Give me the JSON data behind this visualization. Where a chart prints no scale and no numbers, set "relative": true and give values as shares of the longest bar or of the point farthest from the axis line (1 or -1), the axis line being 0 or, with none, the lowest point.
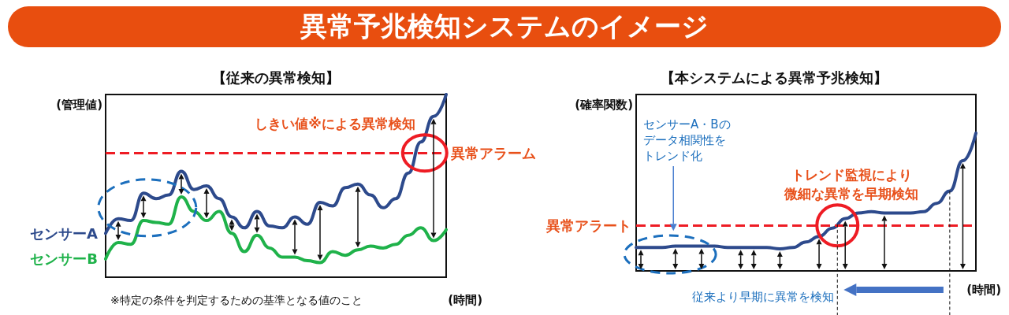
{
  "chart_data": [
    {
      "type": "line",
      "title": "異常予兆検知システムのイメージ",
      "subtitle": "【従来の異常検知】",
      "xlabel": "(時間)",
      "ylabel": "(管理値)",
      "relative": true,
      "categories": [
        null,
        null,
        null,
        null,
        null,
        null,
        null,
        null,
        null,
        null,
        null,
        null,
        null,
        null,
        null,
        null,
        null,
        null,
        null,
        null,
        null,
        null,
        null,
        null,
        null,
        null,
        null,
        null
      ],
      "series": [
        {
          "name": "センサーA",
          "color": "#2d4a8c",
          "values": [
            0.24,
            0.32,
            0.31,
            0.46,
            0.43,
            0.45,
            0.58,
            0.48,
            0.5,
            0.43,
            0.33,
            0.27,
            0.36,
            0.28,
            0.27,
            0.33,
            0.29,
            0.41,
            0.39,
            0.49,
            0.51,
            0.45,
            0.38,
            0.43,
            0.57,
            0.74,
            0.88,
            1
          ]
        },
        {
          "name": "センサーB",
          "color": "#1fb24a",
          "values": [
            0.1,
            0.19,
            0.18,
            0.31,
            0.3,
            0.29,
            0.44,
            0.36,
            0.31,
            0.36,
            0.24,
            0.14,
            0.23,
            0.16,
            0.11,
            0.11,
            0.09,
            0.08,
            0.14,
            0.12,
            0.15,
            0.17,
            0.16,
            0.18,
            0.23,
            0.27,
            0.2,
            0.26
          ]
        }
      ],
      "ref_lines": [
        {
          "axis": "y",
          "value": 0.68,
          "label": "異常アラーム",
          "color": "#ee1c24",
          "line_style": "dashed"
        }
      ],
      "annotations": [
        "しきい値※による異常検知",
        "※特定の条件を判定するための基準となる値のこと"
      ]
    },
    {
      "type": "line",
      "title": "【本システムによる異常予兆検知】",
      "xlabel": "(時間)",
      "ylabel": "(確率関数)",
      "relative": true,
      "categories": [
        null,
        null,
        null,
        null,
        null,
        null,
        null,
        null,
        null,
        null,
        null,
        null,
        null,
        null,
        null,
        null,
        null,
        null,
        null,
        null,
        null,
        null,
        null,
        null,
        null,
        null,
        null
      ],
      "series": [
        {
          "color": "#2d4a8c",
          "values": [
            0.17,
            0.17,
            0.17,
            0.18,
            0.18,
            0.18,
            0.18,
            0.17,
            0.17,
            0.17,
            0.17,
            0.16,
            0.17,
            0.21,
            0.25,
            0.31,
            0.38,
            0.42,
            0.43,
            0.42,
            0.42,
            0.42,
            0.43,
            0.49,
            0.58,
            0.8,
            1
          ]
        }
      ],
      "ref_lines": [
        {
          "axis": "y",
          "value": 0.33,
          "label": "異常アラート",
          "color": "#ee1c24",
          "line_style": "dashed"
        }
      ],
      "annotations": [
        "センサーA・Bの",
        "データ相関性を",
        "トレンド化",
        "トレンド監視により",
        "微細な異常を早期検知",
        "従来より早期に異常を検知"
      ]
    }
  ]
}
